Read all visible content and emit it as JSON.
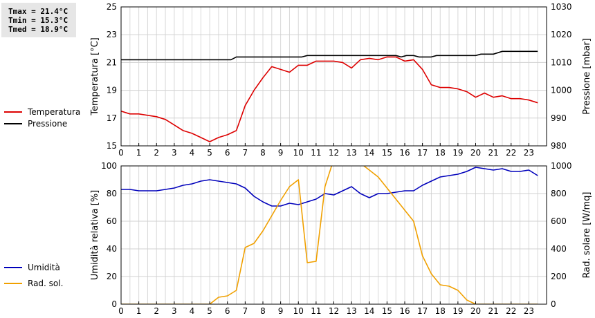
{
  "stats": {
    "tmax": "Tmax = 21.4°C",
    "tmin": "Tmin = 15.3°C",
    "tmed": "Tmed = 18.9°C"
  },
  "legend_top": [
    {
      "label": "Temperatura",
      "color": "#dd0000"
    },
    {
      "label": "Pressione",
      "color": "#000000"
    }
  ],
  "legend_bottom": [
    {
      "label": "Umidità",
      "color": "#0000bb"
    },
    {
      "label": "Rad. sol.",
      "color": "#f0a000"
    }
  ],
  "chart_data": [
    {
      "type": "line",
      "ylabel": "Temperatura [°C]",
      "y2label": "Pressione [mbar]",
      "xlim": [
        0,
        24
      ],
      "ylim": [
        15,
        25
      ],
      "y2lim": [
        980,
        1030
      ],
      "x_ticks": [
        "0",
        "1",
        "2",
        "3",
        "4",
        "5",
        "6",
        "7",
        "8",
        "9",
        "10",
        "11",
        "12",
        "13",
        "14",
        "15",
        "16",
        "17",
        "18",
        "19",
        "20",
        "21",
        "22",
        "23"
      ],
      "y_ticks": [
        "15",
        "17",
        "19",
        "21",
        "23",
        "25"
      ],
      "y2_ticks": [
        "980",
        "990",
        "1000",
        "1010",
        "1020",
        "1030"
      ],
      "grid": true,
      "series": [
        {
          "name": "Temperatura",
          "axis": "left",
          "color": "#dd0000",
          "x": [
            0,
            0.5,
            1,
            1.5,
            2,
            2.5,
            3,
            3.5,
            4,
            4.5,
            5,
            5.5,
            6,
            6.5,
            7,
            7.5,
            8,
            8.5,
            9,
            9.5,
            10,
            10.5,
            11,
            11.5,
            12,
            12.5,
            13,
            13.5,
            14,
            14.5,
            15,
            15.5,
            16,
            16.5,
            17,
            17.5,
            18,
            18.5,
            19,
            19.5,
            20,
            20.5,
            21,
            21.5,
            22,
            22.5,
            23,
            23.5
          ],
          "y": [
            17.5,
            17.3,
            17.3,
            17.2,
            17.1,
            16.9,
            16.5,
            16.1,
            15.9,
            15.6,
            15.3,
            15.6,
            15.8,
            16.1,
            17.9,
            19.0,
            19.9,
            20.7,
            20.5,
            20.3,
            20.8,
            20.8,
            21.1,
            21.1,
            21.1,
            21.0,
            20.6,
            21.2,
            21.3,
            21.2,
            21.4,
            21.4,
            21.1,
            21.2,
            20.5,
            19.4,
            19.2,
            19.2,
            19.1,
            18.9,
            18.5,
            18.8,
            18.5,
            18.6,
            18.4,
            18.4,
            18.3,
            18.1
          ]
        },
        {
          "name": "Pressione",
          "axis": "right",
          "color": "#000000",
          "x": [
            0,
            6.2,
            6.5,
            10.2,
            10.5,
            15.5,
            15.8,
            16.1,
            16.5,
            16.8,
            17,
            17.5,
            17.8,
            20,
            20.3,
            21,
            21.5,
            23.5
          ],
          "y": [
            1011,
            1011,
            1012,
            1012,
            1012.5,
            1012.5,
            1012,
            1012.5,
            1012.5,
            1012,
            1012,
            1012,
            1012.5,
            1012.5,
            1013,
            1013,
            1014,
            1014
          ]
        }
      ]
    },
    {
      "type": "line",
      "ylabel": "Umidità relativa [%]",
      "y2label": "Rad. solare [W/mq]",
      "xlim": [
        0,
        24
      ],
      "ylim": [
        0,
        100
      ],
      "y2lim": [
        0,
        1000
      ],
      "x_ticks": [
        "0",
        "1",
        "2",
        "3",
        "4",
        "5",
        "6",
        "7",
        "8",
        "9",
        "10",
        "11",
        "12",
        "13",
        "14",
        "15",
        "16",
        "17",
        "18",
        "19",
        "20",
        "21",
        "22",
        "23"
      ],
      "y_ticks": [
        "0",
        "20",
        "40",
        "60",
        "80",
        "100"
      ],
      "y2_ticks": [
        "0",
        "200",
        "400",
        "600",
        "800",
        "1000"
      ],
      "grid": true,
      "series": [
        {
          "name": "Umidità",
          "axis": "left",
          "color": "#0000bb",
          "x": [
            0,
            0.5,
            1,
            1.5,
            2,
            2.5,
            3,
            3.5,
            4,
            4.5,
            5,
            5.5,
            6,
            6.5,
            7,
            7.5,
            8,
            8.5,
            9,
            9.5,
            10,
            10.5,
            11,
            11.5,
            12,
            12.5,
            13,
            13.5,
            14,
            14.5,
            15,
            15.5,
            16,
            16.5,
            17,
            17.5,
            18,
            18.5,
            19,
            19.5,
            20,
            20.5,
            21,
            21.5,
            22,
            22.5,
            23,
            23.5
          ],
          "y": [
            83,
            83,
            82,
            82,
            82,
            83,
            84,
            86,
            87,
            89,
            90,
            89,
            88,
            87,
            84,
            78,
            74,
            71,
            71,
            73,
            72,
            74,
            76,
            80,
            79,
            82,
            85,
            80,
            77,
            80,
            80,
            81,
            82,
            82,
            86,
            89,
            92,
            93,
            94,
            96,
            99,
            98,
            97,
            98,
            96,
            96,
            97,
            93
          ]
        },
        {
          "name": "Rad. sol.",
          "axis": "right",
          "color": "#f0a000",
          "x": [
            0,
            5,
            5.5,
            6,
            6.5,
            7,
            7.5,
            8,
            8.5,
            9,
            9.5,
            10,
            10.5,
            11,
            11.5,
            12,
            12.5,
            13,
            13.5,
            14,
            14.5,
            15,
            15.5,
            16,
            16.5,
            17,
            17.5,
            18,
            18.5,
            19,
            19.5,
            20,
            21,
            23.5
          ],
          "y": [
            0,
            0,
            50,
            60,
            100,
            410,
            440,
            530,
            640,
            750,
            850,
            900,
            300,
            310,
            850,
            1050,
            1050,
            1050,
            1020,
            970,
            920,
            840,
            760,
            680,
            600,
            350,
            220,
            140,
            130,
            100,
            30,
            0,
            0,
            0
          ]
        }
      ]
    }
  ]
}
